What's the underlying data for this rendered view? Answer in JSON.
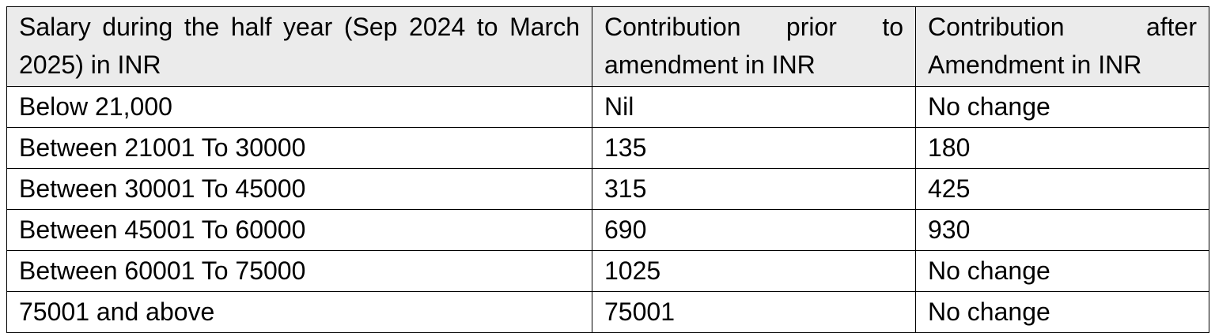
{
  "table": {
    "header": [
      "Salary during the half year (Sep 2024 to March 2025) in INR",
      "Contribution prior to amendment in INR",
      "Contribution after Amendment in INR"
    ],
    "rows": [
      [
        "Below 21,000",
        "Nil",
        "No change"
      ],
      [
        "Between 21001 To 30000",
        "135",
        "180"
      ],
      [
        "Between 30001 To 45000",
        "315",
        "425"
      ],
      [
        "Between 45001 To 60000",
        "690",
        "930"
      ],
      [
        "Between 60001 To 75000",
        "1025",
        "No change"
      ],
      [
        "75001 and above",
        "75001",
        "No change"
      ]
    ]
  }
}
